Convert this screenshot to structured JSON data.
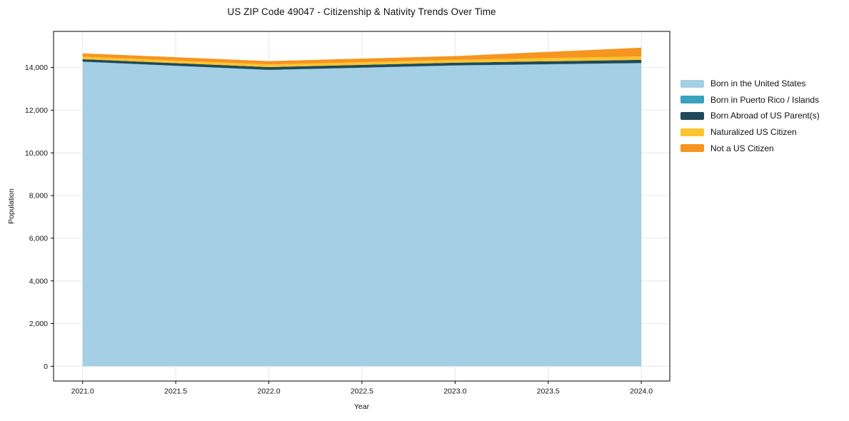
{
  "title": "US ZIP Code 49047 - Citizenship & Nativity Trends Over Time",
  "colors": {
    "background": "#ffffff",
    "grid": "#e8e8e8",
    "spine": "#000000",
    "tick_text": "#111111"
  },
  "chart_data": {
    "type": "area",
    "stacked": true,
    "title": "US ZIP Code 49047 - Citizenship & Nativity Trends Over Time",
    "xlabel": "Year",
    "ylabel": "Population",
    "grid": true,
    "legend_position": "right",
    "x": [
      2021,
      2022,
      2023,
      2024
    ],
    "series": [
      {
        "name": "Born in the United States",
        "color": "#a4cfe5",
        "values": [
          14265,
          13880,
          14090,
          14200
        ]
      },
      {
        "name": "Born in Puerto Rico / Islands",
        "color": "#39a2be",
        "values": [
          10,
          10,
          10,
          10
        ]
      },
      {
        "name": "Born Abroad of US Parent(s)",
        "color": "#204a59",
        "values": [
          115,
          130,
          125,
          150
        ]
      },
      {
        "name": "Naturalized US Citizen",
        "color": "#fdc42e",
        "values": [
          120,
          120,
          135,
          160
        ]
      },
      {
        "name": "Not a US Citizen",
        "color": "#f6951f",
        "values": [
          155,
          160,
          175,
          410
        ]
      }
    ],
    "totals": [
      14665,
      14300,
      14535,
      14930
    ],
    "xlim": [
      2020.844,
      2024.153
    ],
    "ylim": [
      -692,
      15692
    ],
    "x_ticks": {
      "values": [
        2021.0,
        2021.5,
        2022.0,
        2022.5,
        2023.0,
        2023.5,
        2024.0
      ],
      "labels": [
        "2021.0",
        "2021.5",
        "2022.0",
        "2022.5",
        "2023.0",
        "2023.5",
        "2024.0"
      ]
    },
    "y_ticks": {
      "values": [
        0,
        2000,
        4000,
        6000,
        8000,
        10000,
        12000,
        14000
      ],
      "labels": [
        "0",
        "2,000",
        "4,000",
        "6,000",
        "8,000",
        "10,000",
        "12,000",
        "14,000"
      ]
    }
  }
}
